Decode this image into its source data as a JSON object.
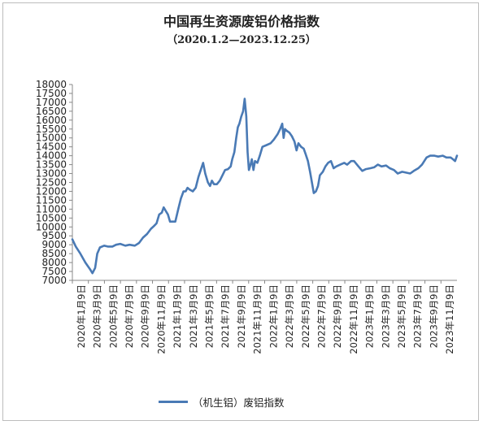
{
  "chart_data": {
    "type": "line",
    "title": "中国再生资源废铝价格指数",
    "subtitle": "（2020.1.2—2023.12.25）",
    "ylim": [
      7000,
      18000
    ],
    "yticks": [
      "7000",
      "7500",
      "8000",
      "8500",
      "9000",
      "9500",
      "10000",
      "10500",
      "11000",
      "11500",
      "12000",
      "12500",
      "13000",
      "13500",
      "14000",
      "14500",
      "15000",
      "15500",
      "16000",
      "16500",
      "17000",
      "17500",
      "18000"
    ],
    "xticks": [
      "2020年1月9日",
      "2020年3月9日",
      "2020年5月9日",
      "2020年7月9日",
      "2020年9月9日",
      "2020年11月9日",
      "2021年1月9日",
      "2021年3月9日",
      "2021年5月9日",
      "2021年7月9日",
      "2021年9月9日",
      "2021年11月9日",
      "2022年1月9日",
      "2022年3月9日",
      "2022年5月9日",
      "2022年7月9日",
      "2022年9月9日",
      "2022年11月9日",
      "2023年1月9日",
      "2023年3月9日",
      "2023年5月9日",
      "2023年7月9日",
      "2023年9月9日",
      "2023年11月9日"
    ],
    "grid": false,
    "legend_position": "bottom",
    "color": "#4a7ab5",
    "series": [
      {
        "name": "（机生铝）废铝指数",
        "points": [
          [
            "2020-01-02",
            9300
          ],
          [
            "2020-01-15",
            8900
          ],
          [
            "2020-02-01",
            8500
          ],
          [
            "2020-02-20",
            8000
          ],
          [
            "2020-03-10",
            7600
          ],
          [
            "2020-03-18",
            7400
          ],
          [
            "2020-03-28",
            7700
          ],
          [
            "2020-04-05",
            8500
          ],
          [
            "2020-04-15",
            8850
          ],
          [
            "2020-05-01",
            8950
          ],
          [
            "2020-05-15",
            8900
          ],
          [
            "2020-06-01",
            8900
          ],
          [
            "2020-06-15",
            9000
          ],
          [
            "2020-07-01",
            9050
          ],
          [
            "2020-07-20",
            8950
          ],
          [
            "2020-08-05",
            9000
          ],
          [
            "2020-08-25",
            8950
          ],
          [
            "2020-09-10",
            9100
          ],
          [
            "2020-09-25",
            9400
          ],
          [
            "2020-10-10",
            9600
          ],
          [
            "2020-10-25",
            9900
          ],
          [
            "2020-11-05",
            10050
          ],
          [
            "2020-11-15",
            10200
          ],
          [
            "2020-11-25",
            10700
          ],
          [
            "2020-12-05",
            10800
          ],
          [
            "2020-12-12",
            11100
          ],
          [
            "2020-12-20",
            10900
          ],
          [
            "2020-12-28",
            10700
          ],
          [
            "2021-01-05",
            10300
          ],
          [
            "2021-01-15",
            10300
          ],
          [
            "2021-01-25",
            10300
          ],
          [
            "2021-02-05",
            11000
          ],
          [
            "2021-02-15",
            11600
          ],
          [
            "2021-02-25",
            12000
          ],
          [
            "2021-03-05",
            12000
          ],
          [
            "2021-03-12",
            12200
          ],
          [
            "2021-03-20",
            12100
          ],
          [
            "2021-04-01",
            12000
          ],
          [
            "2021-04-12",
            12200
          ],
          [
            "2021-04-22",
            12800
          ],
          [
            "2021-05-01",
            13200
          ],
          [
            "2021-05-10",
            13600
          ],
          [
            "2021-05-18",
            13000
          ],
          [
            "2021-05-28",
            12500
          ],
          [
            "2021-06-05",
            12300
          ],
          [
            "2021-06-12",
            12600
          ],
          [
            "2021-06-20",
            12400
          ],
          [
            "2021-07-01",
            12400
          ],
          [
            "2021-07-12",
            12600
          ],
          [
            "2021-07-22",
            12900
          ],
          [
            "2021-08-01",
            13200
          ],
          [
            "2021-08-12",
            13250
          ],
          [
            "2021-08-22",
            13400
          ],
          [
            "2021-08-28",
            13800
          ],
          [
            "2021-09-05",
            14200
          ],
          [
            "2021-09-12",
            15000
          ],
          [
            "2021-09-18",
            15600
          ],
          [
            "2021-09-24",
            15800
          ],
          [
            "2021-10-01",
            16200
          ],
          [
            "2021-10-08",
            16500
          ],
          [
            "2021-10-14",
            17200
          ],
          [
            "2021-10-20",
            16200
          ],
          [
            "2021-10-25",
            14200
          ],
          [
            "2021-10-30",
            13200
          ],
          [
            "2021-11-05",
            13500
          ],
          [
            "2021-11-10",
            13800
          ],
          [
            "2021-11-16",
            13200
          ],
          [
            "2021-11-22",
            13700
          ],
          [
            "2021-12-01",
            13600
          ],
          [
            "2021-12-10",
            14000
          ],
          [
            "2021-12-20",
            14500
          ],
          [
            "2022-01-05",
            14600
          ],
          [
            "2022-01-20",
            14700
          ],
          [
            "2022-02-01",
            14900
          ],
          [
            "2022-02-15",
            15200
          ],
          [
            "2022-02-25",
            15500
          ],
          [
            "2022-03-05",
            15800
          ],
          [
            "2022-03-10",
            15000
          ],
          [
            "2022-03-15",
            15500
          ],
          [
            "2022-03-22",
            15400
          ],
          [
            "2022-04-01",
            15300
          ],
          [
            "2022-04-10",
            15100
          ],
          [
            "2022-04-20",
            14800
          ],
          [
            "2022-04-28",
            14300
          ],
          [
            "2022-05-05",
            14700
          ],
          [
            "2022-05-15",
            14500
          ],
          [
            "2022-05-25",
            14400
          ],
          [
            "2022-06-01",
            14100
          ],
          [
            "2022-06-10",
            13700
          ],
          [
            "2022-06-18",
            13100
          ],
          [
            "2022-06-25",
            12500
          ],
          [
            "2022-07-02",
            11900
          ],
          [
            "2022-07-10",
            12000
          ],
          [
            "2022-07-18",
            12300
          ],
          [
            "2022-07-25",
            12900
          ],
          [
            "2022-08-05",
            13100
          ],
          [
            "2022-08-15",
            13400
          ],
          [
            "2022-08-25",
            13600
          ],
          [
            "2022-09-05",
            13700
          ],
          [
            "2022-09-15",
            13300
          ],
          [
            "2022-09-25",
            13400
          ],
          [
            "2022-10-10",
            13500
          ],
          [
            "2022-10-25",
            13600
          ],
          [
            "2022-11-05",
            13500
          ],
          [
            "2022-11-20",
            13700
          ],
          [
            "2022-12-01",
            13700
          ],
          [
            "2022-12-15",
            13450
          ],
          [
            "2023-01-01",
            13150
          ],
          [
            "2023-01-15",
            13250
          ],
          [
            "2023-02-01",
            13300
          ],
          [
            "2023-02-15",
            13350
          ],
          [
            "2023-03-01",
            13500
          ],
          [
            "2023-03-15",
            13400
          ],
          [
            "2023-04-01",
            13450
          ],
          [
            "2023-04-15",
            13300
          ],
          [
            "2023-05-01",
            13200
          ],
          [
            "2023-05-15",
            13000
          ],
          [
            "2023-06-01",
            13100
          ],
          [
            "2023-06-15",
            13050
          ],
          [
            "2023-07-01",
            13000
          ],
          [
            "2023-07-15",
            13150
          ],
          [
            "2023-08-01",
            13300
          ],
          [
            "2023-08-15",
            13500
          ],
          [
            "2023-09-01",
            13900
          ],
          [
            "2023-09-15",
            14000
          ],
          [
            "2023-10-01",
            14000
          ],
          [
            "2023-10-15",
            13950
          ],
          [
            "2023-11-01",
            14000
          ],
          [
            "2023-11-15",
            13900
          ],
          [
            "2023-12-01",
            13900
          ],
          [
            "2023-12-10",
            13800
          ],
          [
            "2023-12-18",
            13700
          ],
          [
            "2023-12-25",
            14000
          ]
        ]
      }
    ]
  }
}
